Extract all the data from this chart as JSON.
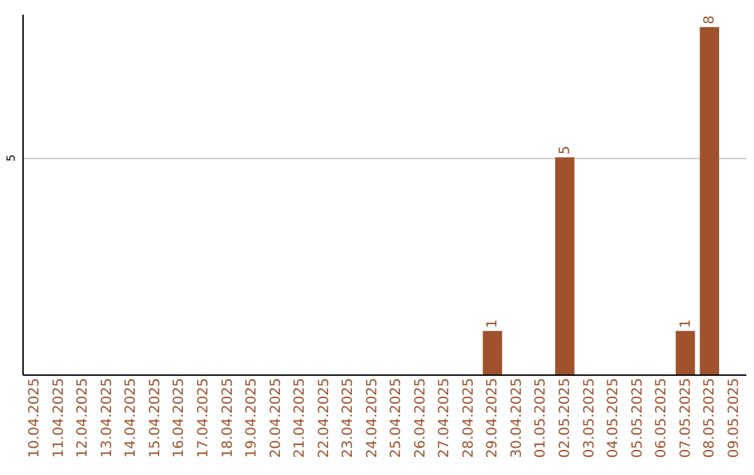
{
  "chart_data": {
    "type": "bar",
    "categories": [
      "10.04.2025",
      "11.04.2025",
      "12.04.2025",
      "13.04.2025",
      "14.04.2025",
      "15.04.2025",
      "16.04.2025",
      "17.04.2025",
      "18.04.2025",
      "19.04.2025",
      "20.04.2025",
      "21.04.2025",
      "22.04.2025",
      "23.04.2025",
      "24.04.2025",
      "25.04.2025",
      "26.04.2025",
      "27.04.2025",
      "28.04.2025",
      "29.04.2025",
      "30.04.2025",
      "01.05.2025",
      "02.05.2025",
      "03.05.2025",
      "04.05.2025",
      "05.05.2025",
      "06.05.2025",
      "07.05.2025",
      "08.05.2025",
      "09.05.2025"
    ],
    "values": [
      null,
      null,
      null,
      null,
      null,
      null,
      null,
      null,
      null,
      null,
      null,
      null,
      null,
      null,
      null,
      null,
      null,
      null,
      null,
      1,
      null,
      null,
      5,
      null,
      null,
      null,
      null,
      1,
      8,
      null
    ],
    "color": "#a0522d",
    "ylim": [
      0,
      8.3
    ],
    "yticks": [
      5
    ],
    "grid": "y",
    "data_labels": true
  }
}
